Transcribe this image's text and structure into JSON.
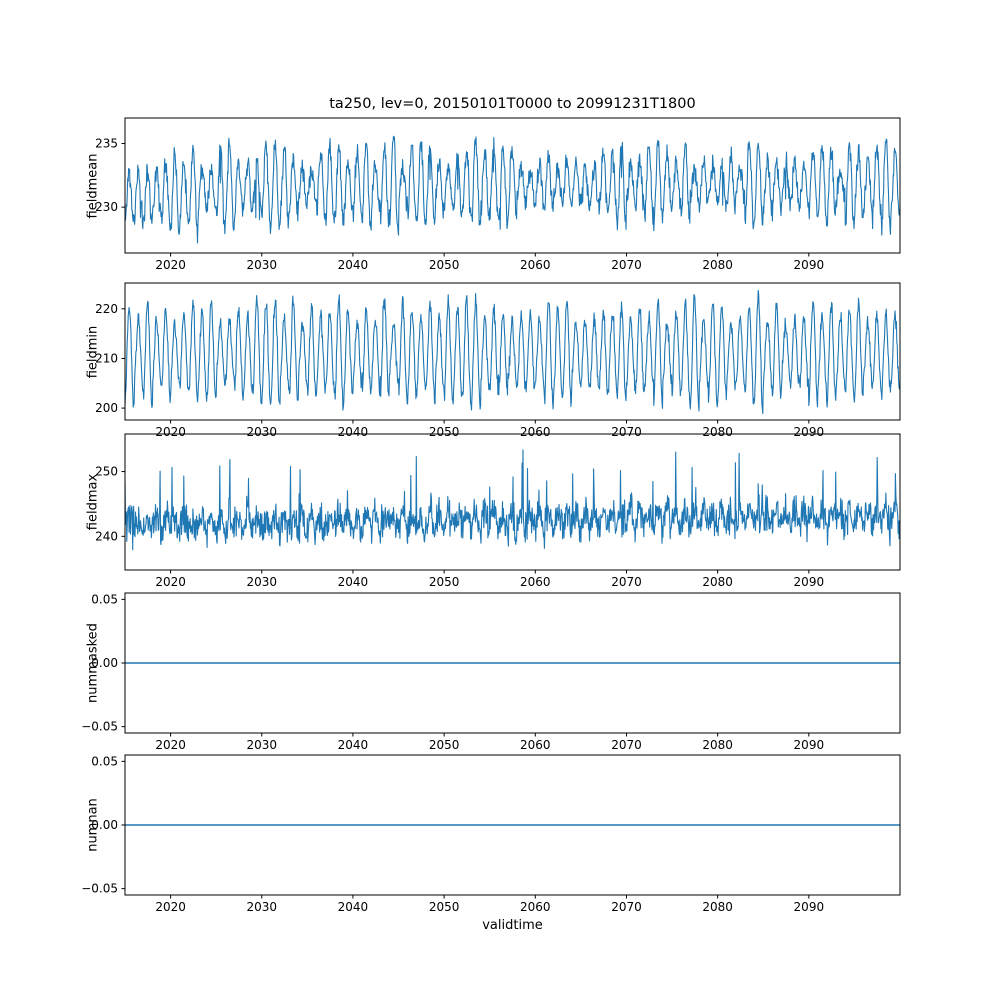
{
  "figure": {
    "title": "ta250, lev=0, 20150101T0000 to 20991231T1800",
    "xlabel": "validtime",
    "background": "#ffffff",
    "line_color": "#1f77b4",
    "axis_color": "#000000"
  },
  "chart_data": {
    "type": "line",
    "title": "ta250, lev=0, 20150101T0000 to 20991231T1800",
    "xlabel": "validtime",
    "legend": "none",
    "grid": false,
    "x": {
      "min": 2015,
      "max": 2100,
      "step": 0.05,
      "ticks": [
        2020,
        2030,
        2040,
        2050,
        2060,
        2070,
        2080,
        2090
      ]
    },
    "subplots": [
      {
        "name": "fieldmean",
        "ylabel": "fieldmean",
        "ylim": [
          226.4,
          237.0
        ],
        "yticks": [
          {
            "v": 230,
            "label": "230"
          },
          {
            "v": 235,
            "label": "235"
          }
        ],
        "summary": {
          "pattern": "annual oscillation with noise",
          "approx_mean": 231.7,
          "approx_min": 227.0,
          "approx_max": 236.8
        },
        "gen": {
          "kind": "seasonal",
          "mean": 231.7,
          "season_amp": 2.3,
          "amp_jitter": 0.55,
          "noise": 0.85,
          "spike_prob": 0.004,
          "spike_amp": -2.2,
          "ramp_amp": -1.0,
          "ramp_tau": 7,
          "trend": 0.002,
          "seed": 11
        }
      },
      {
        "name": "fieldmin",
        "ylabel": "fieldmin",
        "ylim": [
          197.6,
          225.2
        ],
        "yticks": [
          {
            "v": 200,
            "label": "200"
          },
          {
            "v": 210,
            "label": "210"
          },
          {
            "v": 220,
            "label": "220"
          }
        ],
        "summary": {
          "pattern": "strong annual oscillation",
          "approx_mean": 211.0,
          "approx_min": 199.5,
          "approx_max": 225.0
        },
        "gen": {
          "kind": "seasonal",
          "mean": 211.2,
          "season_amp": 8.6,
          "amp_jitter": 0.35,
          "noise": 1.6,
          "spike_prob": 0.004,
          "spike_amp": 3.0,
          "ramp_amp": 0,
          "ramp_tau": 1,
          "trend": 0,
          "seed": 22
        }
      },
      {
        "name": "fieldmax",
        "ylabel": "fieldmax",
        "ylim": [
          234.8,
          255.8
        ],
        "yticks": [
          {
            "v": 240,
            "label": "240"
          },
          {
            "v": 250,
            "label": "250"
          }
        ],
        "summary": {
          "pattern": "dense noise band with upward spikes",
          "approx_mean": 242.5,
          "approx_min": 236.0,
          "approx_max": 255.5
        },
        "gen": {
          "kind": "seasonal",
          "mean": 241.9,
          "season_amp": 1.1,
          "amp_jitter": 0.5,
          "noise": 2.6,
          "spike_prob": 0.025,
          "spike_amp": 6.5,
          "ramp_amp": 0,
          "ramp_tau": 1,
          "trend": 0.014,
          "seed": 33
        }
      },
      {
        "name": "nummasked",
        "ylabel": "nummasked",
        "ylim": [
          -0.055,
          0.055
        ],
        "yticks": [
          {
            "v": -0.05,
            "label": "−0.05"
          },
          {
            "v": 0,
            "label": "0.00"
          },
          {
            "v": 0.05,
            "label": "0.05"
          }
        ],
        "summary": {
          "pattern": "constant",
          "value": 0
        },
        "gen": {
          "kind": "constant",
          "value": 0
        }
      },
      {
        "name": "numnan",
        "ylabel": "numnan",
        "ylim": [
          -0.055,
          0.055
        ],
        "yticks": [
          {
            "v": -0.05,
            "label": "−0.05"
          },
          {
            "v": 0,
            "label": "0.00"
          },
          {
            "v": 0.05,
            "label": "0.05"
          }
        ],
        "summary": {
          "pattern": "constant",
          "value": 0
        },
        "gen": {
          "kind": "constant",
          "value": 0
        }
      }
    ]
  }
}
